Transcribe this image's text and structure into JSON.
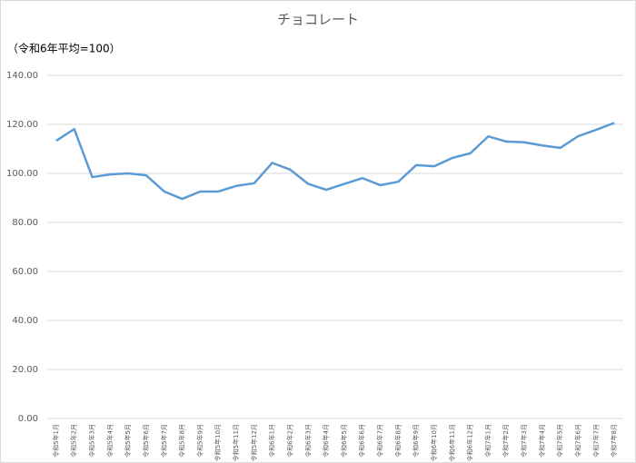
{
  "chart_data": {
    "type": "line",
    "title": "チョコレート",
    "subtitle": "（令和6年平均=100）",
    "categories": [
      "令和5年1月",
      "令和5年2月",
      "令和5年3月",
      "令和5年4月",
      "令和5年5月",
      "令和5年6月",
      "令和5年7月",
      "令和5年8月",
      "令和5年9月",
      "令和5年10月",
      "令和5年11月",
      "令和5年12月",
      "令和6年1月",
      "令和6年2月",
      "令和6年3月",
      "令和6年4月",
      "令和6年5月",
      "令和6年6月",
      "令和6年7月",
      "令和6年8月",
      "令和6年9月",
      "令和6年10月",
      "令和6年11月",
      "令和6年12月",
      "令和7年1月",
      "令和7年2月",
      "令和7年3月",
      "令和7年4月",
      "令和7年5月",
      "令和7年6月",
      "令和7年7月",
      "令和7年8月"
    ],
    "values": [
      113.3,
      118.1,
      98.5,
      99.6,
      100.0,
      99.2,
      92.6,
      89.6,
      92.6,
      92.6,
      94.9,
      96.0,
      104.3,
      101.5,
      95.7,
      93.3,
      95.7,
      98.1,
      95.2,
      96.6,
      103.4,
      102.9,
      106.3,
      108.2,
      115.1,
      113.0,
      112.7,
      111.4,
      110.4,
      115.2,
      117.8,
      120.6
    ],
    "color": "#5b9bd5",
    "ylim": [
      0,
      140
    ],
    "yticks": [
      {
        "value": 0,
        "label": "0.00"
      },
      {
        "value": 20,
        "label": "20.00"
      },
      {
        "value": 40,
        "label": "40.00"
      },
      {
        "value": 60,
        "label": "60.00"
      },
      {
        "value": 80,
        "label": "80.00"
      },
      {
        "value": 100,
        "label": "100.00"
      },
      {
        "value": 120,
        "label": "120.00"
      },
      {
        "value": 140,
        "label": "140.00"
      }
    ],
    "grid": true
  }
}
